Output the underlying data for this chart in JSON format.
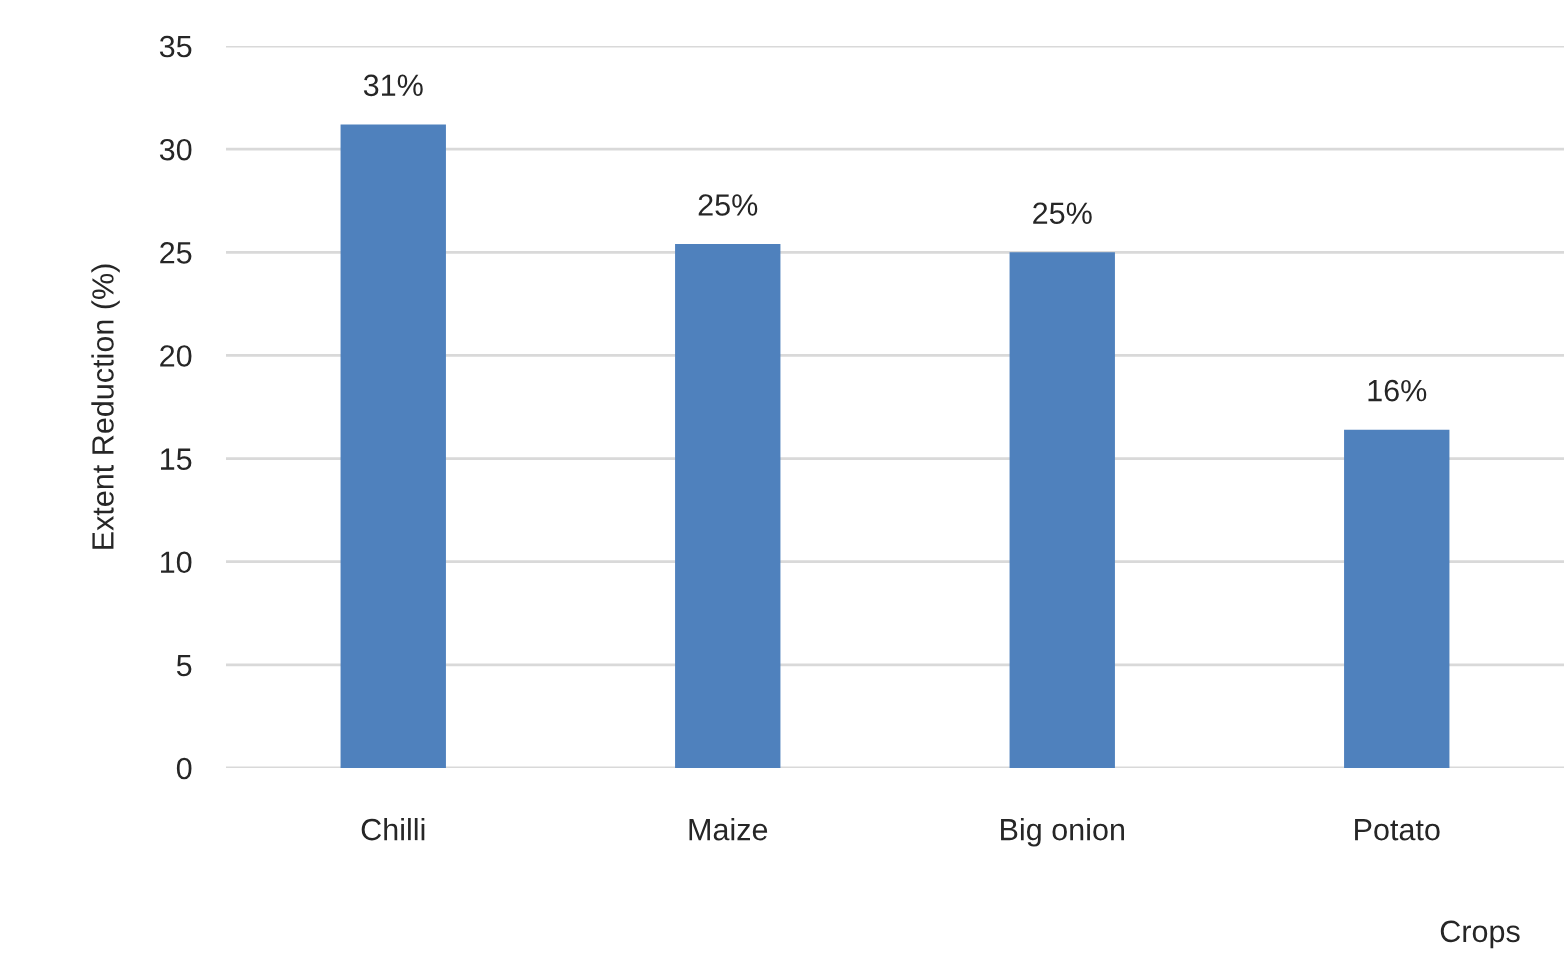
{
  "chart_data": {
    "type": "bar",
    "categories": [
      "Chilli",
      "Maize",
      "Big onion",
      "Potato"
    ],
    "values": [
      31.2,
      25.4,
      25.0,
      16.4
    ],
    "value_labels": [
      "31%",
      "25%",
      "25%",
      "16%"
    ],
    "color": "#4f81bd",
    "xlabel": "Crops",
    "ylabel": "Extent Reduction (%)",
    "ylim": [
      0,
      35
    ],
    "yticks": [
      0,
      5,
      10,
      15,
      20,
      25,
      30,
      35
    ],
    "grid": "y",
    "legend": false
  }
}
